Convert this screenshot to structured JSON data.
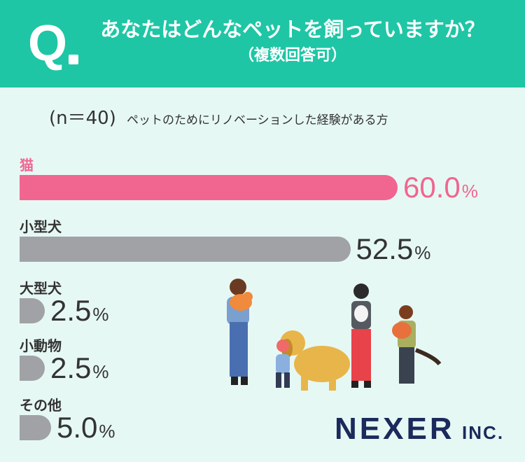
{
  "header": {
    "q_mark": "Q",
    "title": "あなたはどんなペットを飼っていますか？",
    "subtitle": "（複数回答可）"
  },
  "sample": {
    "n_label": "(n＝40)",
    "description": "ペットのためにリノベーションした経験がある方"
  },
  "colors": {
    "header": "#1ec6a5",
    "highlight": "#f06690",
    "bar": "#a0a2a6",
    "background": "#e6f8f4"
  },
  "chart_data": {
    "type": "bar",
    "orientation": "horizontal",
    "categories": [
      "猫",
      "小型犬",
      "大型犬",
      "小動物",
      "その他"
    ],
    "values": [
      60.0,
      52.5,
      2.5,
      2.5,
      5.0
    ],
    "value_labels": [
      "60.0",
      "52.5",
      "2.5",
      "2.5",
      "5.0"
    ],
    "unit": "%",
    "title": "",
    "xlabel": "",
    "ylabel": "",
    "highlight_index": 0
  },
  "illustration": {
    "icon": "people-with-pets-illustration"
  },
  "logo": {
    "main": "NEXER",
    "suffix": "INC."
  }
}
